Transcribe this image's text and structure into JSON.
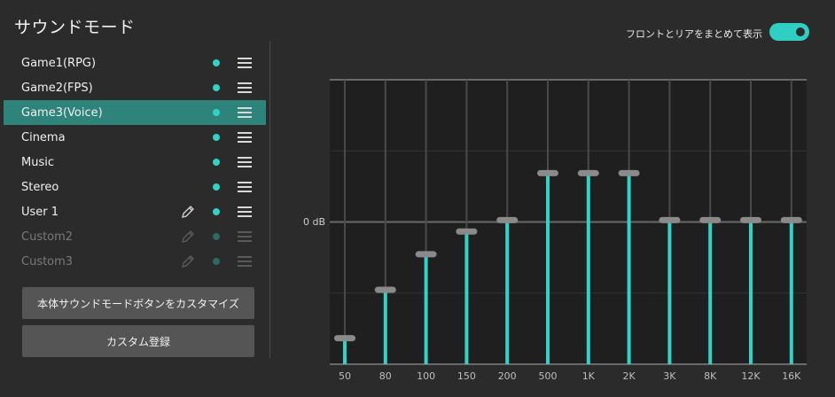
{
  "title": "サウンドモード",
  "modes": [
    {
      "label": "Game1(RPG)",
      "editable": false,
      "disabled": false,
      "selected": false
    },
    {
      "label": "Game2(FPS)",
      "editable": false,
      "disabled": false,
      "selected": false
    },
    {
      "label": "Game3(Voice)",
      "editable": false,
      "disabled": false,
      "selected": true
    },
    {
      "label": "Cinema",
      "editable": false,
      "disabled": false,
      "selected": false
    },
    {
      "label": "Music",
      "editable": false,
      "disabled": false,
      "selected": false
    },
    {
      "label": "Stereo",
      "editable": false,
      "disabled": false,
      "selected": false
    },
    {
      "label": "User 1",
      "editable": true,
      "disabled": false,
      "selected": false
    },
    {
      "label": "Custom2",
      "editable": true,
      "disabled": true,
      "selected": false
    },
    {
      "label": "Custom3",
      "editable": true,
      "disabled": true,
      "selected": false
    }
  ],
  "buttons": {
    "customize": "本体サウンドモードボタンをカスタマイズ",
    "register": "カスタム登録"
  },
  "toggle": {
    "label": "フロントとリアをまとめて表示",
    "on": true
  },
  "colors": {
    "accent": "#2fd3c8",
    "selected_row": "#2e847a",
    "background": "#2b2b2b"
  },
  "icons": {
    "edit": "pencil-icon",
    "menu": "hamburger-menu-icon"
  },
  "equalizer": {
    "zero_label": "0 dB",
    "bands": [
      "50",
      "80",
      "100",
      "150",
      "200",
      "500",
      "1K",
      "2K",
      "3K",
      "8K",
      "12K",
      "16K"
    ],
    "levels": [
      0.09,
      0.26,
      0.385,
      0.465,
      0.505,
      0.67,
      0.67,
      0.67,
      0.505,
      0.505,
      0.505,
      0.505
    ]
  }
}
